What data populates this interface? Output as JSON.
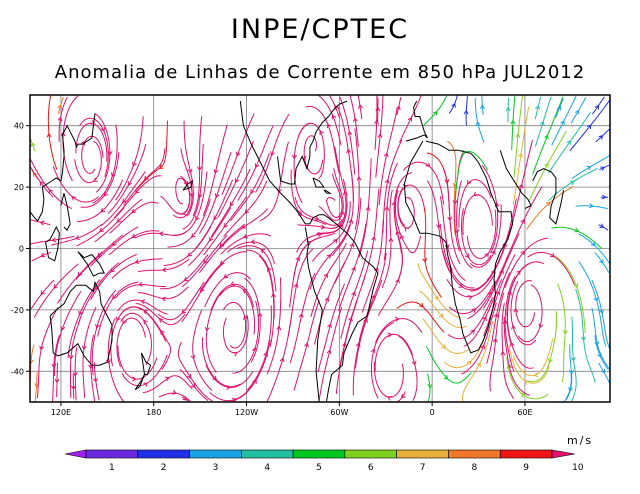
{
  "title": "INPE/CPTEC",
  "subtitle": "Anomalia de Linhas de Corrente em 850 hPa JUL2012",
  "map": {
    "lat_ticks": [
      {
        "value": 40,
        "label": "40"
      },
      {
        "value": 20,
        "label": "20"
      },
      {
        "value": 0,
        "label": "0"
      },
      {
        "value": -20,
        "label": "-20"
      },
      {
        "value": -40,
        "label": "-40"
      }
    ],
    "lon_ticks": [
      {
        "value": 120,
        "label": "120E"
      },
      {
        "value": 180,
        "label": "180"
      },
      {
        "value": 240,
        "label": "120W"
      },
      {
        "value": 300,
        "label": "60W"
      },
      {
        "value": 360,
        "label": "0"
      },
      {
        "value": 420,
        "label": "60E"
      }
    ],
    "lon_range": [
      100,
      475
    ],
    "lat_range": [
      -50,
      50
    ]
  },
  "colorbar": {
    "units": "m/s",
    "labels": [
      "1",
      "2",
      "3",
      "4",
      "5",
      "6",
      "7",
      "8",
      "9",
      "10"
    ],
    "colors": [
      "#a020f0",
      "#6a2ae0",
      "#2030e8",
      "#1aa2e6",
      "#20c0a0",
      "#00c81e",
      "#80d020",
      "#e6b03a",
      "#f07828",
      "#f01414",
      "#e0106e"
    ]
  }
}
